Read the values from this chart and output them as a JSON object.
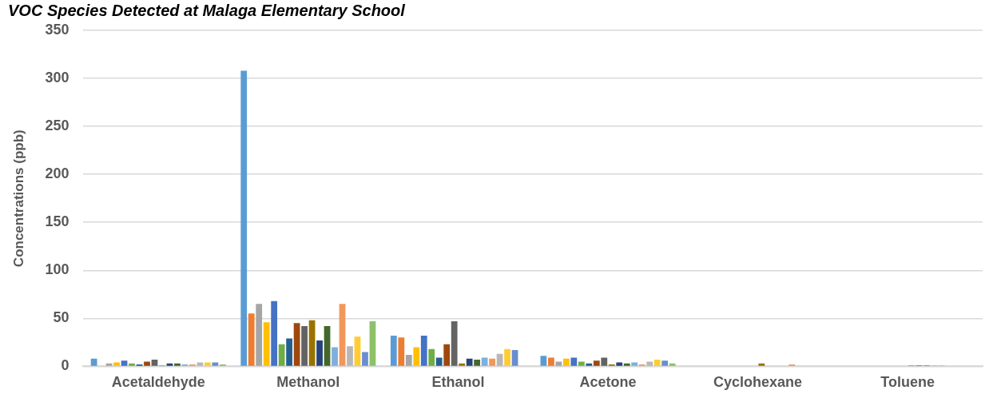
{
  "chart_data": {
    "type": "bar",
    "title": "VOC Species Detected at Malaga Elementary School",
    "ylabel": "Concentrations (ppb)",
    "categories": [
      "Acetaldehyde",
      "Methanol",
      "Ethanol",
      "Acetone",
      "Cyclohexane",
      "Toluene"
    ],
    "ylim": [
      0,
      350
    ],
    "yticks": [
      0,
      50,
      100,
      150,
      200,
      250,
      300,
      350
    ],
    "grid": "y",
    "legend": false,
    "series": [
      {
        "color": "#5b9bd5",
        "values": [
          8,
          308,
          32,
          11,
          0,
          0
        ]
      },
      {
        "color": "#ed7d31",
        "values": [
          0,
          55,
          30,
          9,
          0,
          0
        ]
      },
      {
        "color": "#a5a5a5",
        "values": [
          3,
          65,
          12,
          5,
          0,
          0
        ]
      },
      {
        "color": "#ffc000",
        "values": [
          4,
          46,
          20,
          8,
          0,
          0
        ]
      },
      {
        "color": "#4472c4",
        "values": [
          6,
          68,
          32,
          9,
          0,
          0
        ]
      },
      {
        "color": "#70ad47",
        "values": [
          3,
          23,
          18,
          5,
          0,
          0
        ]
      },
      {
        "color": "#255e91",
        "values": [
          2,
          29,
          9,
          3,
          0,
          0
        ]
      },
      {
        "color": "#9e480e",
        "values": [
          5,
          45,
          23,
          6,
          0,
          0
        ]
      },
      {
        "color": "#636363",
        "values": [
          7,
          42,
          47,
          9,
          0,
          0
        ]
      },
      {
        "color": "#997300",
        "values": [
          1,
          48,
          3,
          2,
          3,
          1
        ]
      },
      {
        "color": "#264478",
        "values": [
          3,
          27,
          8,
          4,
          0,
          1
        ]
      },
      {
        "color": "#43682b",
        "values": [
          3,
          42,
          7,
          3,
          0,
          1
        ]
      },
      {
        "color": "#7cafdd",
        "values": [
          2,
          20,
          9,
          4,
          0,
          1
        ]
      },
      {
        "color": "#f1975a",
        "values": [
          2,
          65,
          8,
          2,
          2,
          1
        ]
      },
      {
        "color": "#b7b7b7",
        "values": [
          4,
          21,
          13,
          5,
          0,
          0
        ]
      },
      {
        "color": "#ffcd33",
        "values": [
          4,
          31,
          18,
          7,
          0,
          0
        ]
      },
      {
        "color": "#698ed0",
        "values": [
          4,
          15,
          17,
          6,
          0,
          0
        ]
      },
      {
        "color": "#8cc168",
        "values": [
          2,
          47,
          0,
          3,
          0,
          0
        ]
      }
    ]
  }
}
